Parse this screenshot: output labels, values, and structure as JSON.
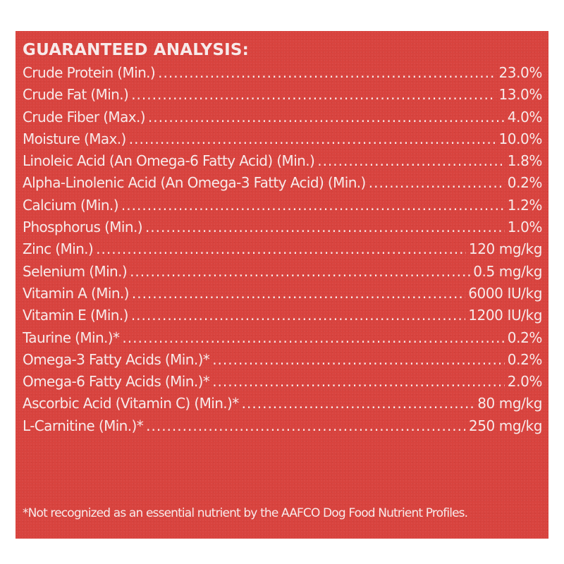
{
  "panel": {
    "background_color": "#d8433e",
    "text_color": "#f7eaea"
  },
  "heading": "GUARANTEED ANALYSIS:",
  "rows": [
    {
      "label": "Crude Protein (Min.)",
      "value": "23.0%"
    },
    {
      "label": "Crude Fat (Min.)",
      "value": "13.0%"
    },
    {
      "label": "Crude Fiber (Max.)",
      "value": "4.0%"
    },
    {
      "label": "Moisture (Max.)",
      "value": "10.0%"
    },
    {
      "label": "Linoleic Acid (An Omega-6 Fatty Acid) (Min.)",
      "value": "1.8%"
    },
    {
      "label": "Alpha-Linolenic Acid (An Omega-3 Fatty Acid) (Min.)",
      "value": "0.2%"
    },
    {
      "label": "Calcium (Min.)",
      "value": "1.2%"
    },
    {
      "label": "Phosphorus (Min.)",
      "value": "1.0%"
    },
    {
      "label": "Zinc (Min.)",
      "value": "120 mg/kg"
    },
    {
      "label": "Selenium (Min.)",
      "value": "0.5 mg/kg"
    },
    {
      "label": "Vitamin A (Min.)",
      "value": "6000 IU/kg"
    },
    {
      "label": "Vitamin E (Min.)",
      "value": "1200 IU/kg"
    },
    {
      "label": "Taurine (Min.)*",
      "value": "0.2%"
    },
    {
      "label": "Omega-3 Fatty Acids (Min.)*",
      "value": "0.2%"
    },
    {
      "label": "Omega-6 Fatty Acids (Min.)*",
      "value": "2.0%"
    },
    {
      "label": "Ascorbic Acid (Vitamin C) (Min.)*",
      "value": "80 mg/kg"
    },
    {
      "label": "L-Carnitine (Min.)*",
      "value": "250 mg/kg"
    }
  ],
  "footnote": "*Not recognized as an essential nutrient by the AAFCO Dog Food Nutrient Profiles."
}
